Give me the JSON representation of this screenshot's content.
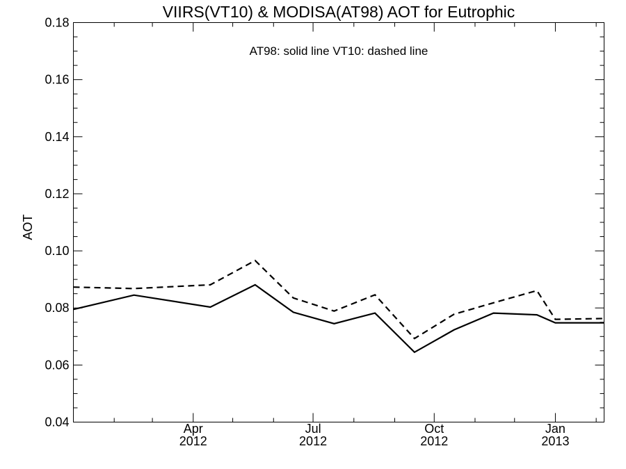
{
  "chart_data": {
    "type": "line",
    "title": "VIIRS(VT10) & MODISA(AT98)  AOT for Eutrophic",
    "annotation": "AT98: solid line   VT10: dashed line",
    "xlabel": "",
    "ylabel": "AOT",
    "xlim": [
      "2012-01-01",
      "2013-02-07"
    ],
    "ylim": [
      0.04,
      0.18
    ],
    "yticks": [
      "0.04",
      "0.06",
      "0.08",
      "0.10",
      "0.12",
      "0.14",
      "0.16",
      "0.18"
    ],
    "xticks": [
      {
        "date": "2012-04-01",
        "label": "Apr",
        "year": "2012"
      },
      {
        "date": "2012-07-01",
        "label": "Jul",
        "year": "2012"
      },
      {
        "date": "2012-10-01",
        "label": "Oct",
        "year": "2012"
      },
      {
        "date": "2013-01-01",
        "label": "Jan",
        "year": "2013"
      }
    ],
    "grid": false,
    "series": [
      {
        "name": "AT98",
        "style": "solid",
        "x": [
          "2012-01-01",
          "2012-02-16",
          "2012-04-14",
          "2012-05-18",
          "2012-06-16",
          "2012-07-17",
          "2012-08-17",
          "2012-09-16",
          "2012-10-16",
          "2012-11-15",
          "2012-12-18",
          "2013-01-01",
          "2013-02-07"
        ],
        "y": [
          0.0795,
          0.0845,
          0.0803,
          0.0881,
          0.0785,
          0.0745,
          0.0782,
          0.0645,
          0.0723,
          0.0782,
          0.0776,
          0.0748,
          0.0748
        ]
      },
      {
        "name": "VT10",
        "style": "dashed",
        "x": [
          "2012-01-01",
          "2012-02-16",
          "2012-04-14",
          "2012-05-18",
          "2012-06-16",
          "2012-07-17",
          "2012-08-17",
          "2012-09-16",
          "2012-10-16",
          "2012-11-15",
          "2012-12-18",
          "2013-01-01",
          "2013-02-07"
        ],
        "y": [
          0.0873,
          0.0868,
          0.0881,
          0.0966,
          0.0835,
          0.0789,
          0.0846,
          0.0693,
          0.0778,
          0.0818,
          0.0861,
          0.076,
          0.0763
        ]
      }
    ]
  }
}
